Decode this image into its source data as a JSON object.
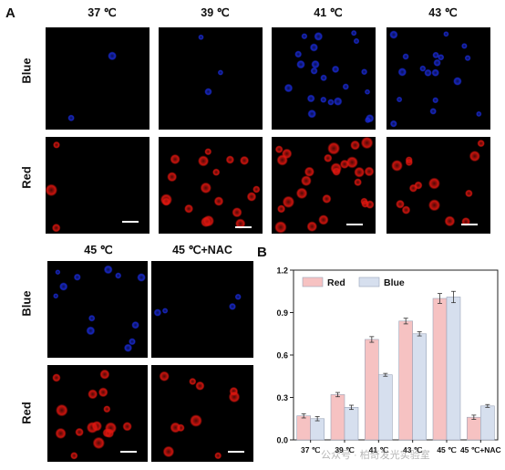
{
  "panel_a_label": "A",
  "panel_b_label": "B",
  "top_row_temps": [
    "37 ℃",
    "39 ℃",
    "41 ℃",
    "43 ℃"
  ],
  "bottom_row_temps": [
    "45 ℃",
    "45 ℃+NAC"
  ],
  "row_labels": {
    "blue": "Blue",
    "red": "Red"
  },
  "cell_counts": {
    "blue": [
      2,
      3,
      22,
      18,
      12,
      4
    ],
    "red": [
      3,
      18,
      26,
      14,
      16,
      10
    ]
  },
  "colors": {
    "blue_cell": "#1a2bd8",
    "red_cell": "#e0160f",
    "bar_red": "#f6c2c2",
    "bar_blue": "#d6dfee"
  },
  "watermark": "公众号 · 柏奇发光实验室",
  "chart_data": {
    "type": "bar",
    "categories": [
      "37 ℃",
      "39 ℃",
      "41 ℃",
      "43 ℃",
      "45 ℃",
      "45 ℃+NAC"
    ],
    "series": [
      {
        "name": "Red",
        "values": [
          0.17,
          0.32,
          0.71,
          0.84,
          1.0,
          0.16
        ],
        "errors": [
          0.015,
          0.015,
          0.02,
          0.02,
          0.035,
          0.015
        ],
        "color": "#f6c2c2"
      },
      {
        "name": "Blue",
        "values": [
          0.15,
          0.23,
          0.46,
          0.75,
          1.01,
          0.24
        ],
        "errors": [
          0.015,
          0.015,
          0.01,
          0.015,
          0.04,
          0.01
        ],
        "color": "#d6dfee"
      }
    ],
    "yticks": [
      "0.0",
      "0.3",
      "0.6",
      "0.9",
      "1.2"
    ],
    "ylim": [
      0,
      1.2
    ],
    "legend_position": "top-left"
  }
}
